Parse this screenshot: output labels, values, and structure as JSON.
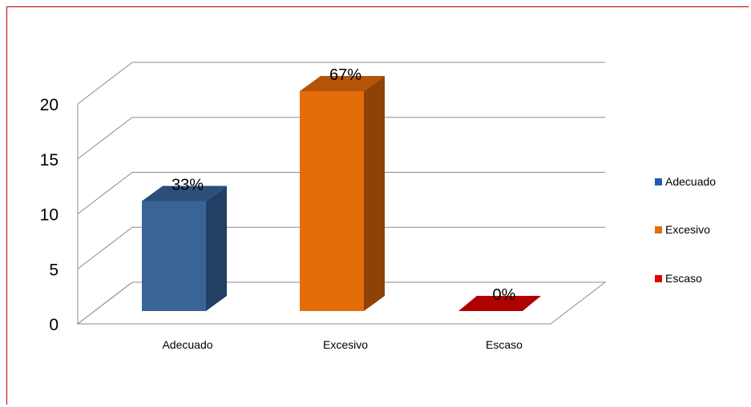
{
  "chart_data": {
    "type": "bar",
    "style": "3d-column",
    "categories": [
      "Adecuado",
      "Excesivo",
      "Escaso"
    ],
    "values": [
      10,
      20,
      0
    ],
    "data_labels": [
      "33%",
      "67%",
      "0%"
    ],
    "colors": [
      "#3a6496",
      "#e46c0a",
      "#cc0000"
    ],
    "side_colors": [
      "#233f63",
      "#8e4206",
      "#8a0000"
    ],
    "top_colors": [
      "#2b4f7a",
      "#b35508",
      "#b00000"
    ],
    "ylim": [
      0,
      20
    ],
    "yticks": [
      0,
      5,
      10,
      15,
      20
    ],
    "grid": true,
    "legend": {
      "position": "right",
      "entries": [
        {
          "label": "Adecuado",
          "color": "#1f5faa"
        },
        {
          "label": "Excesivo",
          "color": "#e46c0a"
        },
        {
          "label": "Escaso",
          "color": "#e00000"
        }
      ]
    },
    "title": "",
    "xlabel": "",
    "ylabel": ""
  },
  "frame_color": "#c00000",
  "grid_color": "#8c8c8c"
}
